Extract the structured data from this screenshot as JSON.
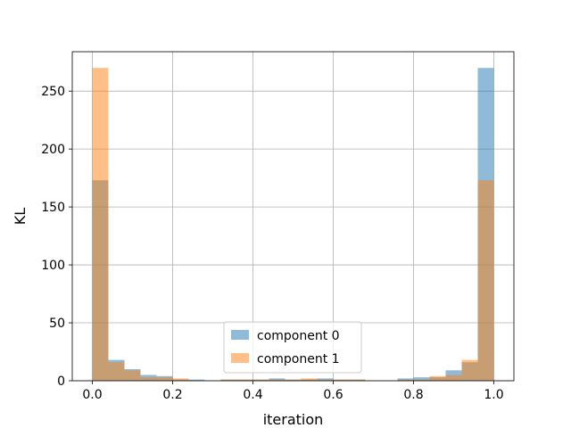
{
  "chart_data": {
    "type": "bar",
    "title": "",
    "xlabel": "iteration",
    "ylabel": "KL",
    "xlim": [
      -0.05,
      1.05
    ],
    "ylim": [
      0,
      284
    ],
    "xticks": [
      "0.0",
      "0.2",
      "0.4",
      "0.6",
      "0.8",
      "1.0"
    ],
    "yticks": [
      "0",
      "50",
      "100",
      "150",
      "200",
      "250"
    ],
    "grid": true,
    "legend_position": "lower center",
    "bin_edges": [
      0.0,
      0.04,
      0.08,
      0.12,
      0.16,
      0.2,
      0.24,
      0.28,
      0.32,
      0.36,
      0.4,
      0.44,
      0.48,
      0.52,
      0.56,
      0.6,
      0.64,
      0.68,
      0.72,
      0.76,
      0.8,
      0.84,
      0.88,
      0.92,
      0.96,
      1.0
    ],
    "series": [
      {
        "name": "component 0",
        "color": "#1f77b4",
        "alpha": 0.5,
        "values": [
          173,
          18,
          10,
          5,
          4,
          1,
          1,
          0,
          1,
          1,
          1,
          2,
          1,
          1,
          2,
          1,
          1,
          0,
          0,
          2,
          3,
          3,
          9,
          16,
          270
        ]
      },
      {
        "name": "component 1",
        "color": "#ff7f0e",
        "alpha": 0.5,
        "values": [
          270,
          16,
          9,
          3,
          3,
          2,
          0,
          0,
          1,
          1,
          1,
          1,
          1,
          2,
          1,
          1,
          1,
          0,
          0,
          1,
          1,
          4,
          5,
          18,
          173
        ]
      }
    ]
  }
}
